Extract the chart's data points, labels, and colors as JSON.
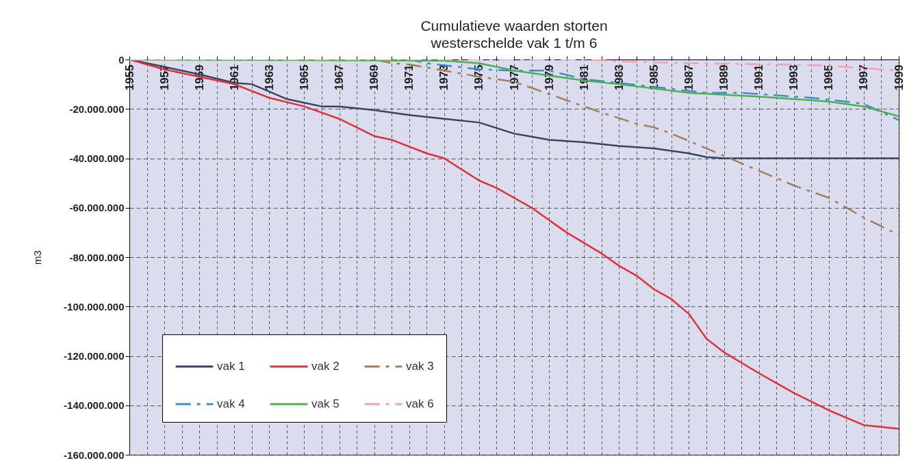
{
  "chart_data": {
    "type": "line",
    "title": "Cumulatieve waarden storten",
    "subtitle": "westerschelde  vak 1 t/m  6",
    "ylabel": "m3",
    "xlim": [
      1955,
      1999
    ],
    "xticks": [
      1955,
      {
        "value": 1956,
        "label": null
      },
      1957,
      {
        "value": 1958,
        "label": null
      },
      1959,
      {
        "value": 1960,
        "label": null
      },
      1961,
      {
        "value": 1962,
        "label": null
      },
      1963,
      {
        "value": 1964,
        "label": null
      },
      1965,
      {
        "value": 1966,
        "label": null
      },
      1967,
      {
        "value": 1968,
        "label": null
      },
      1969,
      {
        "value": 1970,
        "label": null
      },
      1971,
      {
        "value": 1972,
        "label": null
      },
      1973,
      {
        "value": 1974,
        "label": null
      },
      1975,
      {
        "value": 1976,
        "label": null
      },
      1977,
      {
        "value": 1978,
        "label": null
      },
      1979,
      {
        "value": 1980,
        "label": null
      },
      1981,
      {
        "value": 1982,
        "label": null
      },
      1983,
      {
        "value": 1984,
        "label": null
      },
      1985,
      {
        "value": 1986,
        "label": null
      },
      1987,
      {
        "value": 1988,
        "label": null
      },
      1989,
      {
        "value": 1990,
        "label": null
      },
      1991,
      {
        "value": 1992,
        "label": null
      },
      1993,
      {
        "value": 1994,
        "label": null
      },
      1995,
      {
        "value": 1996,
        "label": null
      },
      1997,
      {
        "value": 1998,
        "label": null
      },
      1999
    ],
    "ylim": [
      -160000000,
      0
    ],
    "yticks": [
      0,
      {
        "value": -20000000,
        "label": "-20.000.000"
      },
      {
        "value": -40000000,
        "label": "-40.000.000"
      },
      {
        "value": -60000000,
        "label": "-60.000.000"
      },
      {
        "value": -80000000,
        "label": "-80.000.000"
      },
      {
        "value": -100000000,
        "label": "-100.000.000"
      },
      {
        "value": -120000000,
        "label": "-120.000.000"
      },
      {
        "value": -140000000,
        "label": "-140.000.000"
      },
      {
        "value": -160000000,
        "label": "-160.000.000"
      }
    ],
    "grid": true,
    "legend": "bottom left",
    "series": [
      {
        "name": "vak 1",
        "color": "#34465e",
        "line_style": "solid",
        "x": [
          1955,
          1957,
          1959,
          1961,
          1962,
          1963,
          1964,
          1965,
          1966,
          1967,
          1969,
          1971,
          1973,
          1975,
          1977,
          1979,
          1981,
          1983,
          1985,
          1987,
          1988,
          1989,
          1999
        ],
        "values": [
          0,
          -3000000,
          -6000000,
          -9500000,
          -10000000,
          -13000000,
          -16000000,
          -17500000,
          -19000000,
          -19000000,
          -20500000,
          -22500000,
          -24000000,
          -25500000,
          -30000000,
          -32500000,
          -33500000,
          -35000000,
          -36000000,
          -38000000,
          -39500000,
          -40000000,
          -40000000
        ]
      },
      {
        "name": "vak 2",
        "color": "#e0303c",
        "line_style": "solid",
        "x": [
          1955,
          1957,
          1959,
          1961,
          1963,
          1965,
          1967,
          1969,
          1970,
          1972,
          1973,
          1975,
          1976,
          1978,
          1980,
          1982,
          1983,
          1984,
          1985,
          1986,
          1987,
          1988,
          1989,
          1991,
          1993,
          1995,
          1997,
          1999
        ],
        "values": [
          0,
          -4000000,
          -7000000,
          -10000000,
          -15500000,
          -19000000,
          -24000000,
          -31000000,
          -32500000,
          -38000000,
          -40000000,
          -49000000,
          -52000000,
          -60000000,
          -70000000,
          -78500000,
          -83500000,
          -87500000,
          -93000000,
          -97000000,
          -103000000,
          -113000000,
          -118500000,
          -127000000,
          -135000000,
          -142000000,
          -148000000,
          -149500000
        ]
      },
      {
        "name": "vak 3",
        "color": "#a07e58",
        "line_style": "dashed",
        "x": [
          1955,
          1969,
          1970,
          1971,
          1973,
          1975,
          1977,
          1978,
          1980,
          1981,
          1982,
          1984,
          1985,
          1986,
          1988,
          1989,
          1991,
          1993,
          1995,
          1997,
          1999
        ],
        "values": [
          0,
          0,
          -1500000,
          -2000000,
          -4500000,
          -7000000,
          -9000000,
          -11500000,
          -16500000,
          -19000000,
          -21500000,
          -26000000,
          -27500000,
          -30000000,
          -36000000,
          -39000000,
          -45000000,
          -51000000,
          -56000000,
          -64000000,
          -71000000
        ]
      },
      {
        "name": "vak 4",
        "color": "#3a8fd0",
        "line_style": "dashed",
        "x": [
          1955,
          1971,
          1972,
          1975,
          1977,
          1979,
          1981,
          1983,
          1988,
          1990,
          1994,
          1996,
          1997,
          1999
        ],
        "values": [
          0,
          0,
          -1500000,
          -4000000,
          -4500000,
          -4500000,
          -8000000,
          -9500000,
          -13500000,
          -13500000,
          -15500000,
          -17000000,
          -18000000,
          -24500000
        ]
      },
      {
        "name": "vak 5",
        "color": "#4caf50",
        "line_style": "solid",
        "x": [
          1955,
          1973,
          1975,
          1976,
          1977,
          1979,
          1981,
          1983,
          1987,
          1991,
          1995,
          1997,
          1999
        ],
        "values": [
          0,
          -500000,
          -1500000,
          -3000000,
          -4500000,
          -6500000,
          -8500000,
          -10000000,
          -13500000,
          -15000000,
          -17000000,
          -19000000,
          -23000000
        ]
      },
      {
        "name": "vak 6",
        "color": "#f4a0b0",
        "line_style": "dashed",
        "x": [
          1955,
          1981,
          1984,
          1987,
          1992,
          1995,
          1997,
          1998,
          1999
        ],
        "values": [
          0,
          0,
          -1000000,
          -1500000,
          -2000000,
          -2500000,
          -3500000,
          -4000000,
          -4500000
        ]
      }
    ]
  }
}
